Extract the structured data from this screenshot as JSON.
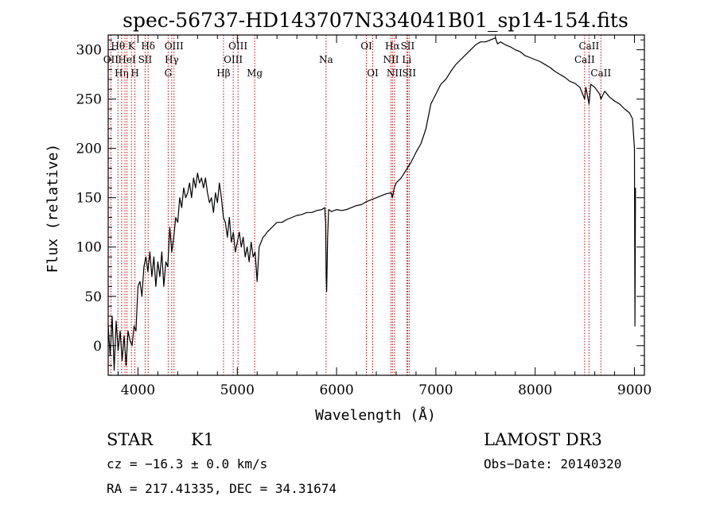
{
  "chart_data": {
    "type": "line",
    "title": "spec-56737-HD143707N334041B01_sp14-154.fits",
    "xlabel": "Wavelength (Å)",
    "ylabel": "Flux (relative)",
    "xlim": [
      3700,
      9100
    ],
    "ylim": [
      -30,
      315
    ],
    "x_ticks": [
      4000,
      5000,
      6000,
      7000,
      8000,
      9000
    ],
    "y_ticks": [
      0,
      50,
      100,
      150,
      200,
      250,
      300
    ],
    "grid": false,
    "series": [
      {
        "name": "flux",
        "x": [
          3700,
          3720,
          3740,
          3760,
          3780,
          3800,
          3820,
          3840,
          3860,
          3880,
          3900,
          3920,
          3940,
          3960,
          3980,
          4000,
          4020,
          4040,
          4060,
          4080,
          4100,
          4120,
          4140,
          4160,
          4180,
          4200,
          4220,
          4240,
          4260,
          4280,
          4300,
          4320,
          4340,
          4360,
          4380,
          4400,
          4420,
          4440,
          4460,
          4480,
          4500,
          4520,
          4540,
          4560,
          4580,
          4600,
          4620,
          4640,
          4660,
          4680,
          4700,
          4720,
          4740,
          4760,
          4780,
          4800,
          4820,
          4840,
          4860,
          4880,
          4900,
          4920,
          4940,
          4960,
          4980,
          5000,
          5020,
          5040,
          5060,
          5080,
          5100,
          5120,
          5140,
          5160,
          5180,
          5200,
          5220,
          5240,
          5260,
          5280,
          5300,
          5350,
          5400,
          5450,
          5500,
          5550,
          5600,
          5650,
          5700,
          5750,
          5800,
          5850,
          5880,
          5890,
          5895,
          5900,
          5910,
          5920,
          5950,
          6000,
          6050,
          6100,
          6150,
          6200,
          6250,
          6300,
          6350,
          6400,
          6450,
          6500,
          6550,
          6563,
          6580,
          6600,
          6650,
          6700,
          6750,
          6800,
          6850,
          6900,
          6950,
          7000,
          7050,
          7100,
          7150,
          7200,
          7250,
          7300,
          7350,
          7400,
          7450,
          7500,
          7550,
          7600,
          7620,
          7650,
          7700,
          7750,
          7800,
          7850,
          7900,
          7950,
          8000,
          8050,
          8100,
          8150,
          8200,
          8250,
          8300,
          8350,
          8400,
          8450,
          8498,
          8510,
          8542,
          8560,
          8600,
          8650,
          8662,
          8700,
          8750,
          8800,
          8850,
          8900,
          8950,
          8980,
          9000,
          9005,
          9010
        ],
        "values": [
          20,
          -10,
          30,
          -25,
          25,
          -5,
          15,
          -15,
          10,
          -20,
          15,
          5,
          0,
          20,
          15,
          60,
          65,
          50,
          80,
          90,
          75,
          95,
          70,
          90,
          60,
          85,
          70,
          95,
          60,
          85,
          80,
          120,
          95,
          110,
          130,
          125,
          150,
          140,
          160,
          150,
          155,
          165,
          150,
          170,
          160,
          175,
          165,
          170,
          160,
          170,
          155,
          145,
          150,
          135,
          155,
          145,
          165,
          150,
          130,
          125,
          110,
          130,
          105,
          115,
          95,
          105,
          115,
          100,
          110,
          90,
          100,
          85,
          105,
          90,
          95,
          65,
          100,
          105,
          110,
          112,
          115,
          120,
          125,
          125,
          128,
          130,
          132,
          133,
          135,
          135,
          137,
          138,
          140,
          125,
          70,
          55,
          110,
          138,
          136,
          138,
          137,
          138,
          140,
          142,
          143,
          146,
          148,
          150,
          152,
          154,
          155,
          150,
          160,
          165,
          170,
          178,
          186,
          196,
          205,
          220,
          245,
          255,
          265,
          270,
          278,
          285,
          290,
          295,
          300,
          305,
          308,
          308,
          310,
          312,
          306,
          308,
          305,
          303,
          300,
          298,
          294,
          292,
          290,
          288,
          285,
          282,
          278,
          275,
          272,
          268,
          266,
          262,
          250,
          262,
          245,
          265,
          262,
          255,
          250,
          258,
          252,
          248,
          245,
          240,
          236,
          230,
          200,
          20,
          160
        ]
      }
    ],
    "line_markers": [
      {
        "wavelength": 3727,
        "label": "OII",
        "row": 2
      },
      {
        "wavelength": 3798,
        "label": "Hθ",
        "row": 1
      },
      {
        "wavelength": 3835,
        "label": "Hη",
        "row": 3
      },
      {
        "wavelength": 3869,
        "label": "",
        "row": 3
      },
      {
        "wavelength": 3889,
        "label": "HeI",
        "row": 2
      },
      {
        "wavelength": 3934,
        "label": "K",
        "row": 1
      },
      {
        "wavelength": 3969,
        "label": "H",
        "row": 3
      },
      {
        "wavelength": 4072,
        "label": "SII",
        "row": 2
      },
      {
        "wavelength": 4102,
        "label": "Hδ",
        "row": 1
      },
      {
        "wavelength": 4304,
        "label": "G",
        "row": 3
      },
      {
        "wavelength": 4340,
        "label": "Hγ",
        "row": 2
      },
      {
        "wavelength": 4363,
        "label": "OIII",
        "row": 1
      },
      {
        "wavelength": 4861,
        "label": "Hβ",
        "row": 3
      },
      {
        "wavelength": 4959,
        "label": "OIII",
        "row": 2
      },
      {
        "wavelength": 5007,
        "label": "OIII",
        "row": 1
      },
      {
        "wavelength": 5175,
        "label": "Mg",
        "row": 3
      },
      {
        "wavelength": 5894,
        "label": "Na",
        "row": 2
      },
      {
        "wavelength": 6300,
        "label": "OI",
        "row": 1
      },
      {
        "wavelength": 6364,
        "label": "OI",
        "row": 3
      },
      {
        "wavelength": 6548,
        "label": "NII",
        "row": 2
      },
      {
        "wavelength": 6563,
        "label": "Hα",
        "row": 1
      },
      {
        "wavelength": 6583,
        "label": "NII",
        "row": 3
      },
      {
        "wavelength": 6707,
        "label": "Li",
        "row": 2
      },
      {
        "wavelength": 6716,
        "label": "SII",
        "row": 1
      },
      {
        "wavelength": 6731,
        "label": "SII",
        "row": 3
      },
      {
        "wavelength": 8498,
        "label": "CaII",
        "row": 2
      },
      {
        "wavelength": 8542,
        "label": "CaII",
        "row": 1
      },
      {
        "wavelength": 8662,
        "label": "CaII",
        "row": 3
      }
    ]
  },
  "info": {
    "object_type": "STAR",
    "subclass": "K1",
    "survey": "LAMOST DR3",
    "redshift_text": "cz = −16.3 ± 0.0 km/s",
    "obs_date_text": "Obs−Date: 20140320",
    "coords_text": "RA = 217.41335, DEC =  34.31674"
  },
  "colors": {
    "spectrum": "#000000",
    "line_marker": "#cc0000",
    "axes": "#000000",
    "background": "#ffffff"
  }
}
